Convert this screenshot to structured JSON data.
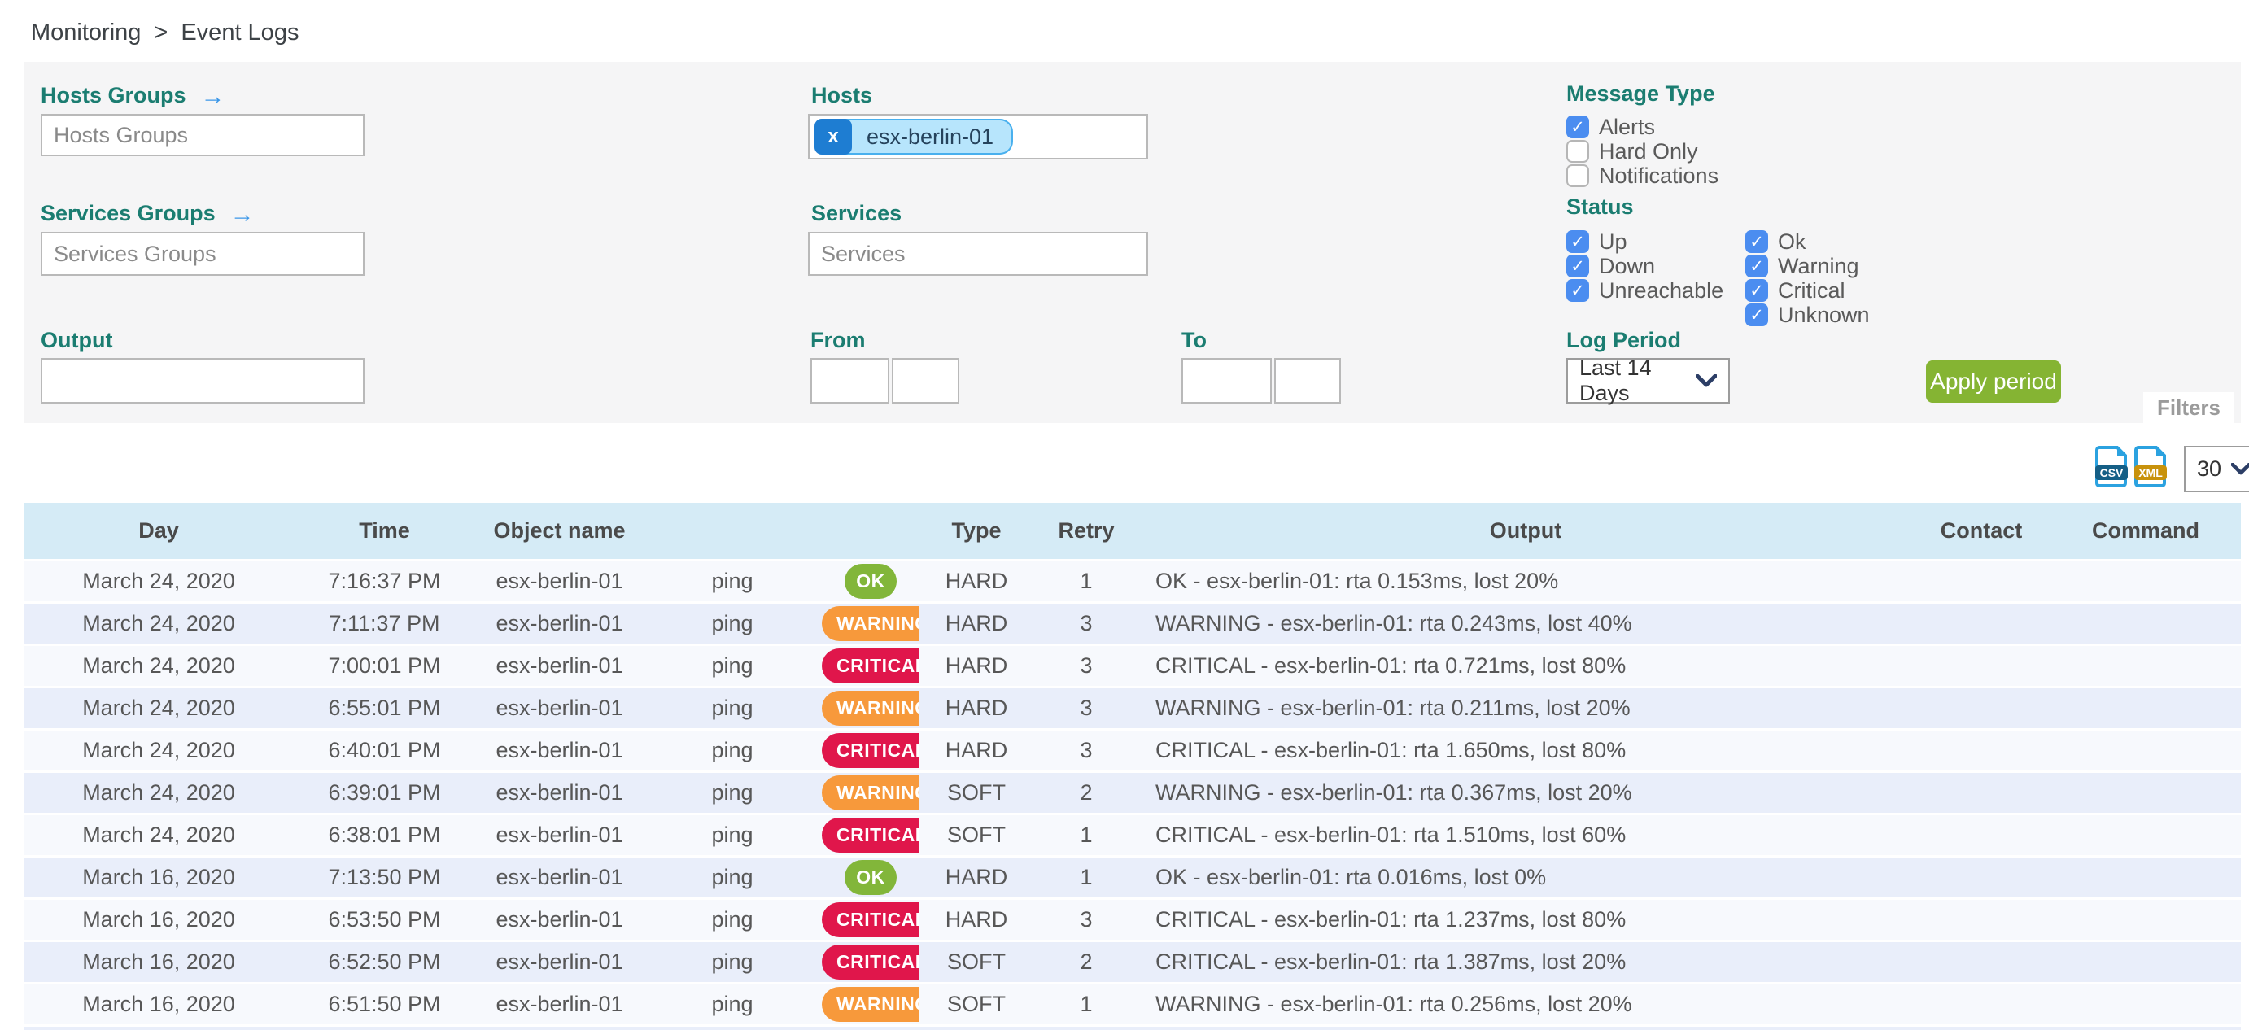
{
  "breadcrumb": {
    "items": [
      "Monitoring",
      "Event Logs"
    ],
    "separator": ">"
  },
  "filters": {
    "hosts_groups": {
      "label": "Hosts Groups",
      "placeholder": "Hosts Groups"
    },
    "services_groups": {
      "label": "Services Groups",
      "placeholder": "Services Groups"
    },
    "hosts": {
      "label": "Hosts",
      "chips": [
        "esx-berlin-01"
      ],
      "chip_remove": "x"
    },
    "services": {
      "label": "Services",
      "placeholder": "Services"
    },
    "output": {
      "label": "Output",
      "value": ""
    },
    "from": {
      "label": "From",
      "date_value": "",
      "time_value": ""
    },
    "to": {
      "label": "To",
      "date_value": "",
      "time_value": ""
    },
    "message_type": {
      "label": "Message Type",
      "options": [
        {
          "label": "Alerts",
          "checked": true
        },
        {
          "label": "Hard Only",
          "checked": false
        },
        {
          "label": "Notifications",
          "checked": false
        }
      ]
    },
    "status": {
      "label": "Status",
      "column1": [
        {
          "label": "Up",
          "checked": true
        },
        {
          "label": "Down",
          "checked": true
        },
        {
          "label": "Unreachable",
          "checked": true
        }
      ],
      "column2": [
        {
          "label": "Ok",
          "checked": true
        },
        {
          "label": "Warning",
          "checked": true
        },
        {
          "label": "Critical",
          "checked": true
        },
        {
          "label": "Unknown",
          "checked": true
        }
      ]
    },
    "log_period": {
      "label": "Log Period",
      "value": "Last 14 Days"
    },
    "apply_button_label": "Apply period",
    "filters_tab_label": "Filters"
  },
  "toolbar": {
    "csv_icon_label": "CSV",
    "xml_icon_label": "XML",
    "page_size": "30"
  },
  "table": {
    "headers": [
      "Day",
      "Time",
      "Object name",
      "",
      "",
      "Type",
      "Retry",
      "Output",
      "Contact",
      "Command"
    ],
    "rows": [
      {
        "day": "March 24, 2020",
        "time": "7:16:37 PM",
        "object": "esx-berlin-01",
        "service": "ping",
        "status": "OK",
        "type": "HARD",
        "retry": "1",
        "output": "OK - esx-berlin-01: rta 0.153ms, lost 20%",
        "contact": "",
        "command": ""
      },
      {
        "day": "March 24, 2020",
        "time": "7:11:37 PM",
        "object": "esx-berlin-01",
        "service": "ping",
        "status": "WARNING",
        "type": "HARD",
        "retry": "3",
        "output": "WARNING - esx-berlin-01: rta 0.243ms, lost 40%",
        "contact": "",
        "command": ""
      },
      {
        "day": "March 24, 2020",
        "time": "7:00:01 PM",
        "object": "esx-berlin-01",
        "service": "ping",
        "status": "CRITICAL",
        "type": "HARD",
        "retry": "3",
        "output": "CRITICAL - esx-berlin-01: rta 0.721ms, lost 80%",
        "contact": "",
        "command": ""
      },
      {
        "day": "March 24, 2020",
        "time": "6:55:01 PM",
        "object": "esx-berlin-01",
        "service": "ping",
        "status": "WARNING",
        "type": "HARD",
        "retry": "3",
        "output": "WARNING - esx-berlin-01: rta 0.211ms, lost 20%",
        "contact": "",
        "command": ""
      },
      {
        "day": "March 24, 2020",
        "time": "6:40:01 PM",
        "object": "esx-berlin-01",
        "service": "ping",
        "status": "CRITICAL",
        "type": "HARD",
        "retry": "3",
        "output": "CRITICAL - esx-berlin-01: rta 1.650ms, lost 80%",
        "contact": "",
        "command": ""
      },
      {
        "day": "March 24, 2020",
        "time": "6:39:01 PM",
        "object": "esx-berlin-01",
        "service": "ping",
        "status": "WARNING",
        "type": "SOFT",
        "retry": "2",
        "output": "WARNING - esx-berlin-01: rta 0.367ms, lost 20%",
        "contact": "",
        "command": ""
      },
      {
        "day": "March 24, 2020",
        "time": "6:38:01 PM",
        "object": "esx-berlin-01",
        "service": "ping",
        "status": "CRITICAL",
        "type": "SOFT",
        "retry": "1",
        "output": "CRITICAL - esx-berlin-01: rta 1.510ms, lost 60%",
        "contact": "",
        "command": ""
      },
      {
        "day": "March 16, 2020",
        "time": "7:13:50 PM",
        "object": "esx-berlin-01",
        "service": "ping",
        "status": "OK",
        "type": "HARD",
        "retry": "1",
        "output": "OK - esx-berlin-01: rta 0.016ms, lost 0%",
        "contact": "",
        "command": ""
      },
      {
        "day": "March 16, 2020",
        "time": "6:53:50 PM",
        "object": "esx-berlin-01",
        "service": "ping",
        "status": "CRITICAL",
        "type": "HARD",
        "retry": "3",
        "output": "CRITICAL - esx-berlin-01: rta 1.237ms, lost 80%",
        "contact": "",
        "command": ""
      },
      {
        "day": "March 16, 2020",
        "time": "6:52:50 PM",
        "object": "esx-berlin-01",
        "service": "ping",
        "status": "CRITICAL",
        "type": "SOFT",
        "retry": "2",
        "output": "CRITICAL - esx-berlin-01: rta 1.387ms, lost 20%",
        "contact": "",
        "command": ""
      },
      {
        "day": "March 16, 2020",
        "time": "6:51:50 PM",
        "object": "esx-berlin-01",
        "service": "ping",
        "status": "WARNING",
        "type": "SOFT",
        "retry": "1",
        "output": "WARNING - esx-berlin-01: rta 0.256ms, lost 20%",
        "contact": "",
        "command": ""
      }
    ]
  },
  "colors": {
    "label_teal": "#1b7d71",
    "arrow_blue": "#3b97e8",
    "checkbox_blue": "#4b8df0",
    "apply_green": "#85b433",
    "badge_ok": "#82b63a",
    "badge_warning": "#f7993b",
    "badge_critical": "#e0164b",
    "header_blue": "#d5ebf6",
    "row_even": "#e9eefa",
    "row_odd": "#f7f9fd",
    "chip_bg": "#b7e5fc",
    "chip_border": "#49b0ee",
    "chip_button": "#1e7dd2"
  }
}
